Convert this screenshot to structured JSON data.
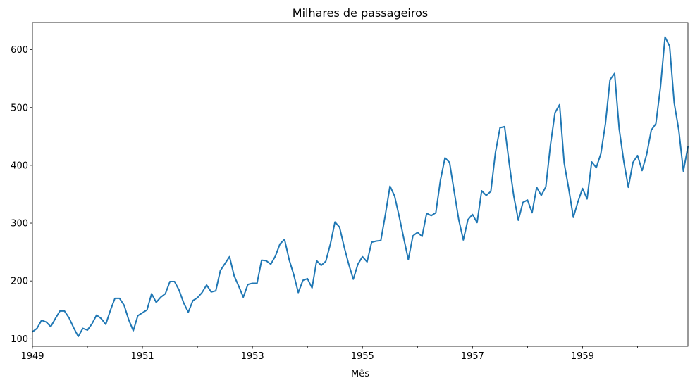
{
  "chart_data": {
    "type": "line",
    "title": "Milhares de passageiros",
    "xlabel": "Mês",
    "ylabel": "",
    "grid": false,
    "legend": "none",
    "x_start": "1949-01",
    "x_end": "1960-12",
    "xlim": [
      "1949-01",
      "1960-12"
    ],
    "ylim": [
      87,
      647
    ],
    "x_tick_labels": [
      "1949",
      "1951",
      "1953",
      "1955",
      "1957",
      "1959"
    ],
    "y_tick_labels": [
      "100",
      "200",
      "300",
      "400",
      "500",
      "600"
    ],
    "series": [
      {
        "name": "",
        "color": "#1f77b4",
        "x": [
          "1949-01",
          "1949-02",
          "1949-03",
          "1949-04",
          "1949-05",
          "1949-06",
          "1949-07",
          "1949-08",
          "1949-09",
          "1949-10",
          "1949-11",
          "1949-12",
          "1950-01",
          "1950-02",
          "1950-03",
          "1950-04",
          "1950-05",
          "1950-06",
          "1950-07",
          "1950-08",
          "1950-09",
          "1950-10",
          "1950-11",
          "1950-12",
          "1951-01",
          "1951-02",
          "1951-03",
          "1951-04",
          "1951-05",
          "1951-06",
          "1951-07",
          "1951-08",
          "1951-09",
          "1951-10",
          "1951-11",
          "1951-12",
          "1952-01",
          "1952-02",
          "1952-03",
          "1952-04",
          "1952-05",
          "1952-06",
          "1952-07",
          "1952-08",
          "1952-09",
          "1952-10",
          "1952-11",
          "1952-12",
          "1953-01",
          "1953-02",
          "1953-03",
          "1953-04",
          "1953-05",
          "1953-06",
          "1953-07",
          "1953-08",
          "1953-09",
          "1953-10",
          "1953-11",
          "1953-12",
          "1954-01",
          "1954-02",
          "1954-03",
          "1954-04",
          "1954-05",
          "1954-06",
          "1954-07",
          "1954-08",
          "1954-09",
          "1954-10",
          "1954-11",
          "1954-12",
          "1955-01",
          "1955-02",
          "1955-03",
          "1955-04",
          "1955-05",
          "1955-06",
          "1955-07",
          "1955-08",
          "1955-09",
          "1955-10",
          "1955-11",
          "1955-12",
          "1956-01",
          "1956-02",
          "1956-03",
          "1956-04",
          "1956-05",
          "1956-06",
          "1956-07",
          "1956-08",
          "1956-09",
          "1956-10",
          "1956-11",
          "1956-12",
          "1957-01",
          "1957-02",
          "1957-03",
          "1957-04",
          "1957-05",
          "1957-06",
          "1957-07",
          "1957-08",
          "1957-09",
          "1957-10",
          "1957-11",
          "1957-12",
          "1958-01",
          "1958-02",
          "1958-03",
          "1958-04",
          "1958-05",
          "1958-06",
          "1958-07",
          "1958-08",
          "1958-09",
          "1958-10",
          "1958-11",
          "1958-12",
          "1959-01",
          "1959-02",
          "1959-03",
          "1959-04",
          "1959-05",
          "1959-06",
          "1959-07",
          "1959-08",
          "1959-09",
          "1959-10",
          "1959-11",
          "1959-12",
          "1960-01",
          "1960-02",
          "1960-03",
          "1960-04",
          "1960-05",
          "1960-06",
          "1960-07",
          "1960-08",
          "1960-09",
          "1960-10",
          "1960-11",
          "1960-12"
        ],
        "values": [
          112,
          118,
          132,
          129,
          121,
          135,
          148,
          148,
          136,
          119,
          104,
          118,
          115,
          126,
          141,
          135,
          125,
          149,
          170,
          170,
          158,
          133,
          114,
          140,
          145,
          150,
          178,
          163,
          172,
          178,
          199,
          199,
          184,
          162,
          146,
          166,
          171,
          180,
          193,
          181,
          183,
          218,
          230,
          242,
          209,
          191,
          172,
          194,
          196,
          196,
          236,
          235,
          229,
          243,
          264,
          272,
          237,
          211,
          180,
          201,
          204,
          188,
          235,
          227,
          234,
          264,
          302,
          293,
          259,
          229,
          203,
          229,
          242,
          233,
          267,
          269,
          270,
          315,
          364,
          347,
          312,
          274,
          237,
          278,
          284,
          277,
          317,
          313,
          318,
          374,
          413,
          405,
          355,
          306,
          271,
          306,
          315,
          301,
          356,
          348,
          355,
          422,
          465,
          467,
          404,
          347,
          305,
          336,
          340,
          318,
          362,
          348,
          363,
          435,
          491,
          505,
          404,
          359,
          310,
          337,
          360,
          342,
          406,
          396,
          420,
          472,
          548,
          559,
          463,
          407,
          362,
          405,
          417,
          391,
          419,
          461,
          472,
          535,
          622,
          606,
          508,
          461,
          390,
          432
        ]
      }
    ]
  }
}
